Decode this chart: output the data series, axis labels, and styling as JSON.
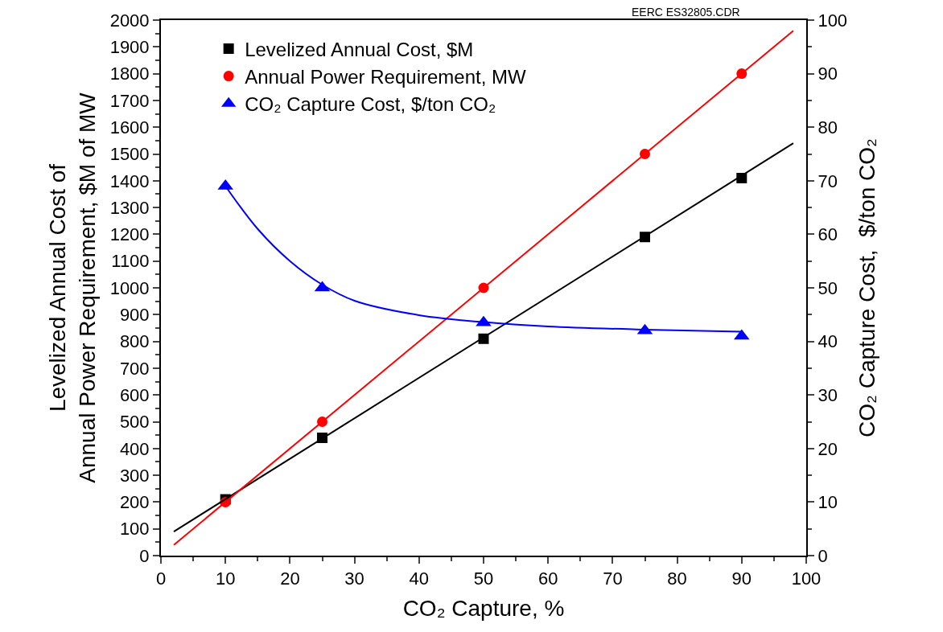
{
  "chart_data": {
    "type": "scatter",
    "xlabel": "CO₂ Capture, %",
    "ylabel": "Levelized Annual Cost of\nAnnual Power Requirement, $M of MW",
    "y2label": "CO₂ Capture Cost,  $/ton CO₂",
    "annotations": [
      "EERC ES32805.CDR"
    ],
    "xlim": [
      0,
      100
    ],
    "xticks": [
      0,
      10,
      20,
      30,
      40,
      50,
      60,
      70,
      80,
      90,
      100
    ],
    "ylim": [
      0,
      2000
    ],
    "yticks": [
      0,
      100,
      200,
      300,
      400,
      500,
      600,
      700,
      800,
      900,
      1000,
      1100,
      1200,
      1300,
      1400,
      1500,
      1600,
      1700,
      1800,
      1900,
      2000
    ],
    "y2lim": [
      0,
      100
    ],
    "y2ticks": [
      0,
      10,
      20,
      30,
      40,
      50,
      60,
      70,
      80,
      90,
      100
    ],
    "legend": "top left",
    "series": [
      {
        "name": "Levelized Annual Cost, $M",
        "color": "#000000",
        "marker": "square",
        "x": [
          10,
          25,
          50,
          75,
          90
        ],
        "values": [
          210,
          440,
          810,
          1190,
          1410
        ]
      },
      {
        "name": "Annual Power Requirement, MW",
        "color": "#ff0000",
        "marker": "circle",
        "x": [
          10,
          25,
          50,
          75,
          90
        ],
        "values": [
          200,
          500,
          1000,
          1500,
          1800
        ]
      },
      {
        "name": "CO₂ Capture Cost, $/ton CO₂",
        "color": "#0000ff",
        "marker": "triangle",
        "axis": "y2",
        "x": [
          10,
          25,
          50,
          75,
          90
        ],
        "values": [
          69,
          50,
          43.5,
          42,
          41
        ]
      },
      {
        "color": "#000000",
        "type": "line",
        "marker": "none",
        "x": [
          2,
          98
        ],
        "values": [
          90,
          1540
        ]
      },
      {
        "color": "#ff0000",
        "type": "line",
        "marker": "none",
        "x": [
          2,
          98
        ],
        "values": [
          40,
          1960
        ]
      },
      {
        "color": "#0000ff",
        "type": "line",
        "marker": "none",
        "axis": "y2",
        "x": [
          10,
          15,
          20,
          25,
          30,
          40,
          50,
          60,
          75,
          90
        ],
        "values": [
          69,
          61,
          55,
          50.6,
          47.6,
          44.9,
          43.6,
          42.8,
          42.2,
          41.8
        ]
      }
    ]
  }
}
